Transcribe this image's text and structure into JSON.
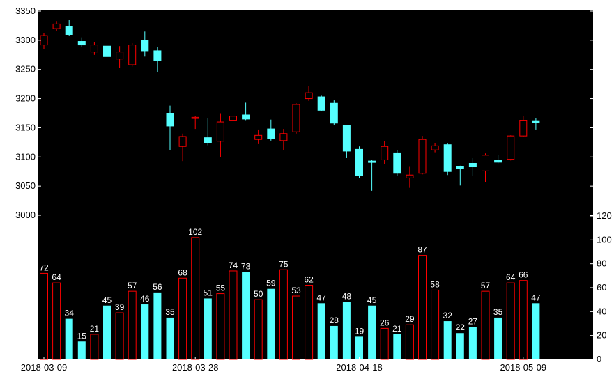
{
  "colors": {
    "background": "#000000",
    "up": "#ff0000",
    "down": "#55ffff",
    "axis_text": "#000000",
    "volume_label": "#ffffff"
  },
  "chart_data": [
    {
      "type": "candlestick",
      "title": "",
      "ylabel": "",
      "ylim": [
        3000,
        3350
      ],
      "yticks": [
        3000,
        3050,
        3100,
        3150,
        3200,
        3250,
        3300,
        3350
      ],
      "ytick_labels": [
        "3000",
        "3050",
        "3100",
        "3150",
        "3200",
        "3250",
        "3300",
        "3350"
      ],
      "x_tick_labels": [
        "2018-03-09",
        "2018-03-28",
        "2018-04-18",
        "2018-05-09"
      ],
      "x_tick_index": [
        0,
        12,
        25,
        38
      ],
      "grid": false,
      "candles": [
        {
          "open": 3292,
          "close": 3308,
          "high": 3312,
          "low": 3285,
          "dir": "up"
        },
        {
          "open": 3320,
          "close": 3328,
          "high": 3333,
          "low": 3316,
          "dir": "up"
        },
        {
          "open": 3324,
          "close": 3310,
          "high": 3335,
          "low": 3308,
          "dir": "down"
        },
        {
          "open": 3298,
          "close": 3292,
          "high": 3305,
          "low": 3288,
          "dir": "down"
        },
        {
          "open": 3280,
          "close": 3292,
          "high": 3297,
          "low": 3275,
          "dir": "up"
        },
        {
          "open": 3290,
          "close": 3272,
          "high": 3300,
          "low": 3268,
          "dir": "down"
        },
        {
          "open": 3268,
          "close": 3280,
          "high": 3290,
          "low": 3253,
          "dir": "up"
        },
        {
          "open": 3258,
          "close": 3292,
          "high": 3295,
          "low": 3255,
          "dir": "up"
        },
        {
          "open": 3300,
          "close": 3282,
          "high": 3315,
          "low": 3272,
          "dir": "down"
        },
        {
          "open": 3282,
          "close": 3265,
          "high": 3288,
          "low": 3245,
          "dir": "down"
        },
        {
          "open": 3175,
          "close": 3153,
          "high": 3188,
          "low": 3112,
          "dir": "down"
        },
        {
          "open": 3118,
          "close": 3135,
          "high": 3140,
          "low": 3093,
          "dir": "up"
        },
        {
          "open": 3166,
          "close": 3168,
          "high": 3170,
          "low": 3148,
          "dir": "up"
        },
        {
          "open": 3133,
          "close": 3124,
          "high": 3166,
          "low": 3120,
          "dir": "down"
        },
        {
          "open": 3127,
          "close": 3160,
          "high": 3175,
          "low": 3100,
          "dir": "up"
        },
        {
          "open": 3162,
          "close": 3170,
          "high": 3175,
          "low": 3155,
          "dir": "up"
        },
        {
          "open": 3172,
          "close": 3165,
          "high": 3193,
          "low": 3162,
          "dir": "down"
        },
        {
          "open": 3130,
          "close": 3137,
          "high": 3147,
          "low": 3122,
          "dir": "up"
        },
        {
          "open": 3148,
          "close": 3132,
          "high": 3164,
          "low": 3128,
          "dir": "down"
        },
        {
          "open": 3128,
          "close": 3140,
          "high": 3148,
          "low": 3112,
          "dir": "up"
        },
        {
          "open": 3143,
          "close": 3190,
          "high": 3192,
          "low": 3140,
          "dir": "up"
        },
        {
          "open": 3200,
          "close": 3210,
          "high": 3222,
          "low": 3196,
          "dir": "up"
        },
        {
          "open": 3203,
          "close": 3180,
          "high": 3205,
          "low": 3178,
          "dir": "down"
        },
        {
          "open": 3192,
          "close": 3158,
          "high": 3197,
          "low": 3155,
          "dir": "down"
        },
        {
          "open": 3154,
          "close": 3110,
          "high": 3155,
          "low": 3098,
          "dir": "down"
        },
        {
          "open": 3113,
          "close": 3068,
          "high": 3118,
          "low": 3064,
          "dir": "down"
        },
        {
          "open": 3093,
          "close": 3091,
          "high": 3095,
          "low": 3042,
          "dir": "down"
        },
        {
          "open": 3095,
          "close": 3118,
          "high": 3127,
          "low": 3088,
          "dir": "up"
        },
        {
          "open": 3107,
          "close": 3072,
          "high": 3112,
          "low": 3068,
          "dir": "down"
        },
        {
          "open": 3064,
          "close": 3069,
          "high": 3083,
          "low": 3047,
          "dir": "up"
        },
        {
          "open": 3072,
          "close": 3130,
          "high": 3136,
          "low": 3070,
          "dir": "up"
        },
        {
          "open": 3112,
          "close": 3119,
          "high": 3124,
          "low": 3108,
          "dir": "up"
        },
        {
          "open": 3121,
          "close": 3075,
          "high": 3123,
          "low": 3069,
          "dir": "down"
        },
        {
          "open": 3083,
          "close": 3082,
          "high": 3085,
          "low": 3051,
          "dir": "down"
        },
        {
          "open": 3089,
          "close": 3083,
          "high": 3098,
          "low": 3068,
          "dir": "down"
        },
        {
          "open": 3076,
          "close": 3103,
          "high": 3106,
          "low": 3057,
          "dir": "up"
        },
        {
          "open": 3094,
          "close": 3091,
          "high": 3103,
          "low": 3089,
          "dir": "down"
        },
        {
          "open": 3096,
          "close": 3136,
          "high": 3137,
          "low": 3094,
          "dir": "up"
        },
        {
          "open": 3136,
          "close": 3162,
          "high": 3170,
          "low": 3134,
          "dir": "up"
        },
        {
          "open": 3161,
          "close": 3159,
          "high": 3166,
          "low": 3147,
          "dir": "down"
        }
      ]
    },
    {
      "type": "bar",
      "title": "",
      "ylabel": "",
      "ylim": [
        0,
        120
      ],
      "yticks": [
        0,
        20,
        40,
        60,
        80,
        100,
        120
      ],
      "ytick_labels": [
        "0",
        "20",
        "40",
        "60",
        "80",
        "100",
        "120"
      ],
      "grid": false,
      "values": [
        72,
        64,
        34,
        15,
        21,
        45,
        39,
        57,
        46,
        56,
        35,
        68,
        102,
        51,
        55,
        74,
        73,
        50,
        59,
        75,
        53,
        62,
        47,
        28,
        48,
        19,
        45,
        26,
        21,
        29,
        87,
        58,
        32,
        22,
        27,
        57,
        35,
        64,
        66,
        47
      ],
      "value_labels": [
        "72",
        "64",
        "34",
        "15",
        "21",
        "45",
        "39",
        "57",
        "46",
        "56",
        "35",
        "68",
        "102",
        "51",
        "55",
        "74",
        "73",
        "50",
        "59",
        "75",
        "53",
        "62",
        "47",
        "28",
        "48",
        "19",
        "45",
        "26",
        "21",
        "29",
        "87",
        "58",
        "32",
        "22",
        "27",
        "57",
        "35",
        "64",
        "66",
        "47"
      ],
      "dirs": [
        "up",
        "up",
        "down",
        "down",
        "up",
        "down",
        "up",
        "up",
        "down",
        "down",
        "down",
        "up",
        "up",
        "down",
        "up",
        "up",
        "down",
        "up",
        "down",
        "up",
        "up",
        "up",
        "down",
        "down",
        "down",
        "down",
        "down",
        "up",
        "down",
        "up",
        "up",
        "up",
        "down",
        "down",
        "down",
        "up",
        "down",
        "up",
        "up",
        "down"
      ]
    }
  ]
}
